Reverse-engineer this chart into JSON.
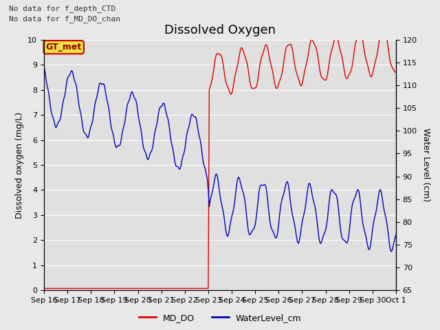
{
  "title": "Dissolved Oxygen",
  "ylabel_left": "Dissolved oxygen (mg/L)",
  "ylabel_right": "Water Level (cm)",
  "text_no_data_1": "No data for f_depth_CTD",
  "text_no_data_2": "No data for f_MD_DO_chan",
  "text_box": "GT_met",
  "ylim_left": [
    0.0,
    10.0
  ],
  "ylim_right": [
    65,
    120
  ],
  "fig_facecolor": "#e8e8e8",
  "plot_bg_color": "#e0e0e0",
  "grid_color": "#ffffff",
  "red_color": "#dd0000",
  "blue_color": "#0000bb",
  "x_tick_labels": [
    "Sep 16",
    "Sep 17",
    "Sep 18",
    "Sep 19",
    "Sep 20",
    "Sep 21",
    "Sep 22",
    "Sep 23",
    "Sep 24",
    "Sep 25",
    "Sep 26",
    "Sep 27",
    "Sep 28",
    "Sep 29",
    "Sep 30",
    "Oct 1"
  ],
  "title_fontsize": 13,
  "label_fontsize": 9,
  "tick_fontsize": 8,
  "legend_fontsize": 9
}
